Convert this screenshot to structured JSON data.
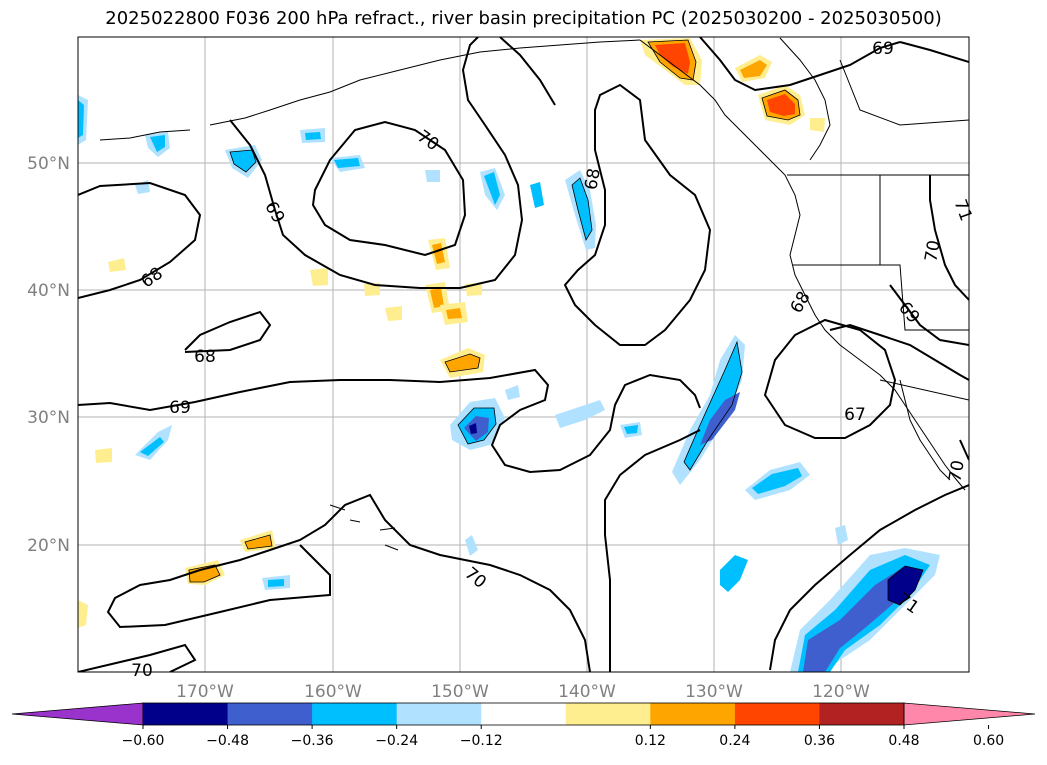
{
  "title": "2025022800 F036 200 hPa refract., river basin precipitation PC (2025030200 - 2025030500)",
  "lat_labels": [
    "50°N",
    "40°N",
    "30°N",
    "20°N"
  ],
  "lon_labels": [
    "170°W",
    "160°W",
    "150°W",
    "140°W",
    "130°W",
    "120°W"
  ],
  "colorbar": {
    "ticks": [
      "−0.60",
      "−0.48",
      "−0.36",
      "−0.24",
      "−0.12",
      "0.12",
      "0.24",
      "0.36",
      "0.48",
      "0.60"
    ],
    "colors": [
      "#9933cc",
      "#00008b",
      "#3f5fcf",
      "#00bfff",
      "#b0e2ff",
      "#ffffff",
      "#ffee90",
      "#ffa500",
      "#ff4500",
      "#b22222",
      "#ff88aa"
    ]
  },
  "contour_labels": [
    "70",
    "69",
    "68",
    "68",
    "68",
    "69",
    "68",
    "69",
    "67",
    "70",
    "69",
    "71",
    "70",
    "71",
    "70",
    "70"
  ]
}
